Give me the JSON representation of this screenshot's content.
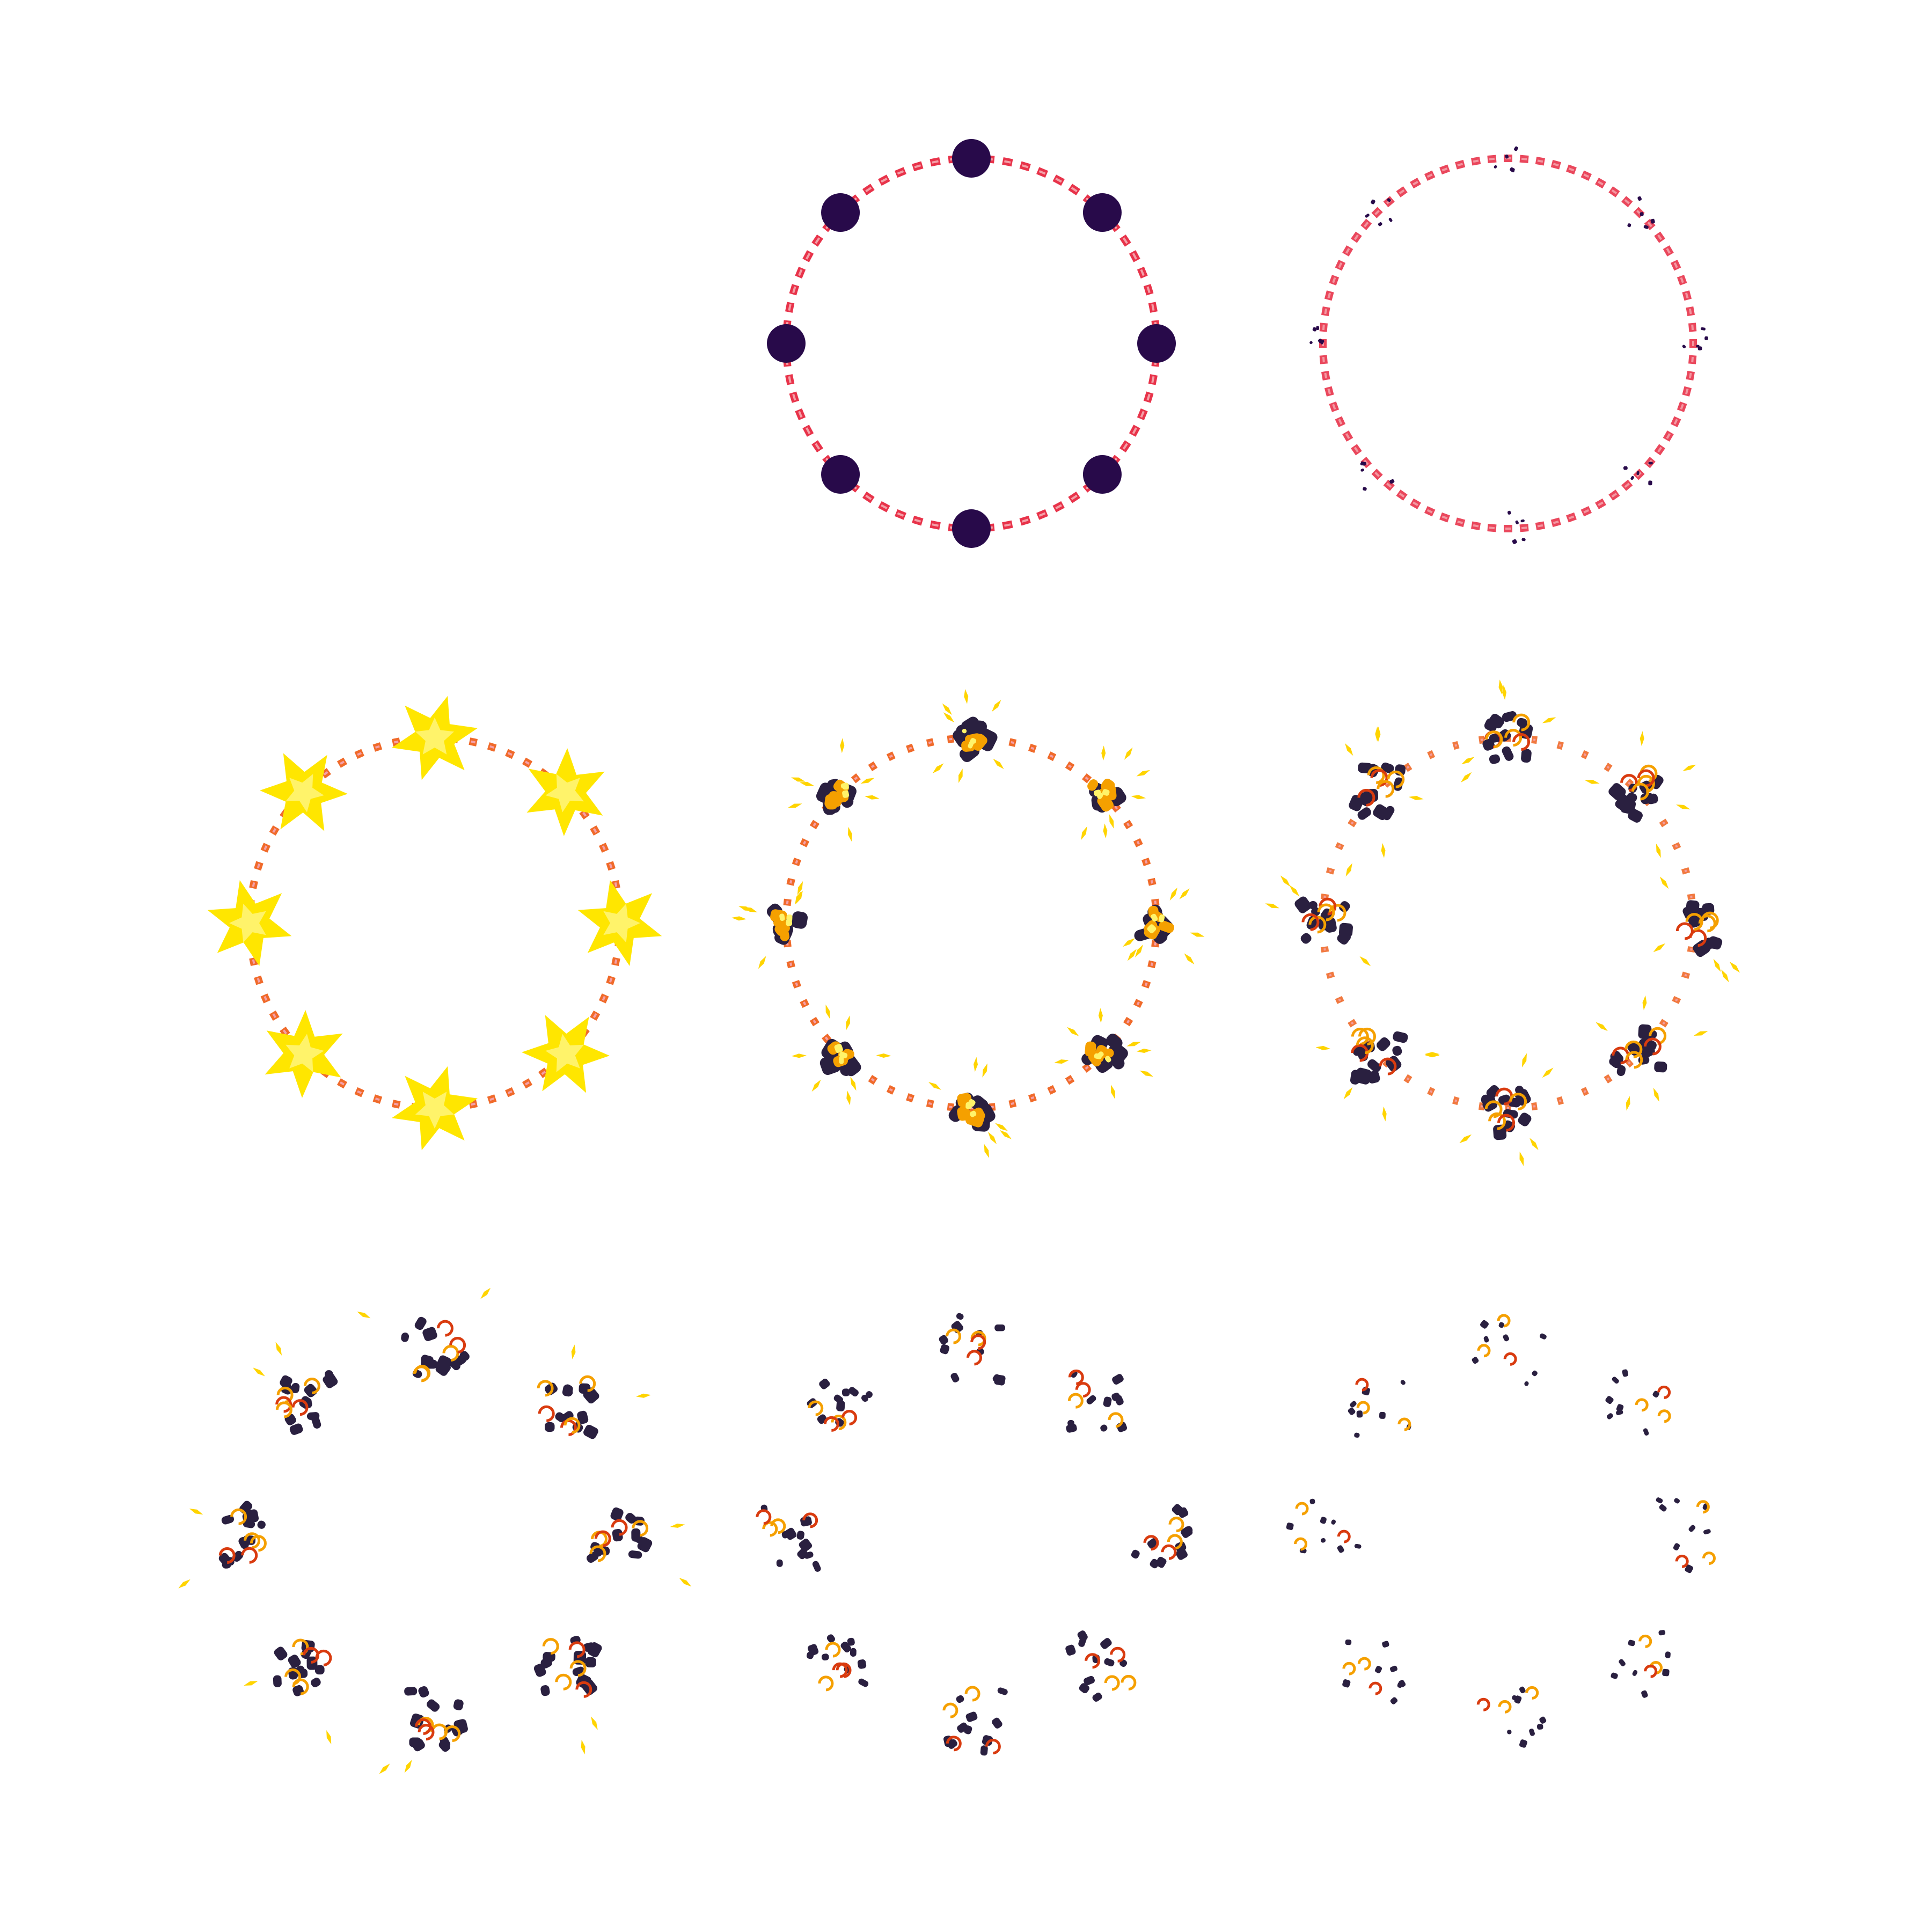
{
  "sprite_sheet": {
    "description_visible": false,
    "grid": {
      "rows": 3,
      "cols": 3
    },
    "colors": {
      "background": "#ffffff",
      "fuse_red": "#e8334a",
      "fuse_pink": "#f4a0a8",
      "fuse_orange": "#f06a2a",
      "bomb_purple": "#280a4a",
      "smoke_dark": "#2a2040",
      "flash_yellow": "#ffe600",
      "flash_light": "#fff36a",
      "fire_orange": "#f5a000",
      "fire_red": "#d93b0f",
      "spark": "#ffd400"
    },
    "frames": [
      {
        "id": "frame-empty",
        "stage": "empty"
      },
      {
        "id": "frame-bombs",
        "stage": "bombs-on-ring"
      },
      {
        "id": "frame-fuse-debris",
        "stage": "bombs-vanish"
      },
      {
        "id": "frame-flash",
        "stage": "yellow-flash"
      },
      {
        "id": "frame-fireball",
        "stage": "fireball"
      },
      {
        "id": "frame-burst",
        "stage": "burst-with-smoke"
      },
      {
        "id": "frame-smoke-large",
        "stage": "smoke-large"
      },
      {
        "id": "frame-smoke-medium",
        "stage": "smoke-medium"
      },
      {
        "id": "frame-smoke-fading",
        "stage": "smoke-fading"
      }
    ],
    "bombs_per_ring": 8
  }
}
